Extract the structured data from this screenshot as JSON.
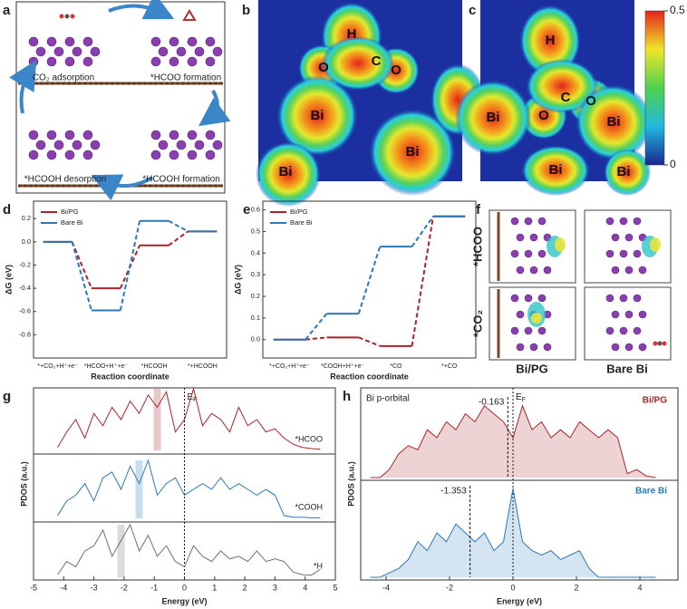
{
  "panels": {
    "a": {
      "letter": "a",
      "steps": [
        "CO₂ adsorption",
        "*HCOO formation",
        "*HCOOH desorption",
        "*HCOOH formation"
      ]
    },
    "b": {
      "letter": "b",
      "atoms": [
        "H",
        "C",
        "O",
        "O",
        "Bi",
        "Bi",
        "Bi"
      ]
    },
    "c": {
      "letter": "c",
      "atoms": [
        "H",
        "C",
        "O",
        "O",
        "Bi",
        "Bi",
        "Bi",
        "Bi"
      ],
      "colorbar": {
        "range": [
          0,
          0.5
        ],
        "ticks": [
          0,
          0.5
        ]
      }
    },
    "f": {
      "letter": "f",
      "rows": [
        "*HCOO",
        "*CO₂"
      ],
      "columns": [
        "Bi/PG",
        "Bare Bi"
      ]
    }
  },
  "chart_data": [
    {
      "panel": "d",
      "type": "step",
      "xlabel": "Reaction coordinate",
      "ylabel": "ΔG (eV)",
      "categories": [
        "*+CO₂+H⁺+e⁻",
        "*HCOO+H⁺+e⁻",
        "*HCOOH",
        "*+HCOOH"
      ],
      "series": [
        {
          "name": "Bi/PG",
          "color": "#a8232b",
          "values": [
            0,
            -0.4,
            -0.03,
            0.09
          ]
        },
        {
          "name": "Bare Bi",
          "color": "#2a78b8",
          "values": [
            0,
            -0.59,
            0.18,
            0.09
          ]
        }
      ],
      "ylim": [
        -1.0,
        0.35
      ],
      "yticks": [
        -0.8,
        -0.6,
        -0.4,
        -0.2,
        {
          "value": 0,
          "label": "0.0"
        },
        0.2
      ],
      "legend": "upper left"
    },
    {
      "panel": "e",
      "type": "step",
      "xlabel": "Reaction coordinate",
      "ylabel": "ΔG (eV)",
      "categories": [
        "*+CO₂+H⁺+e⁻",
        "*COOH+H⁺+e⁻",
        "*CO",
        "*+CO"
      ],
      "series": [
        {
          "name": "Bi/PG",
          "color": "#a8232b",
          "values": [
            0,
            0.01,
            -0.03,
            0.57
          ]
        },
        {
          "name": "Bare Bi",
          "color": "#2a78b8",
          "values": [
            0,
            0.12,
            0.43,
            0.57
          ]
        }
      ],
      "ylim": [
        -0.085,
        0.64
      ],
      "yticks": [
        {
          "value": 0,
          "label": "0.0"
        },
        0.1,
        0.2,
        0.3,
        0.4,
        0.5,
        0.6
      ],
      "legend": "upper left"
    },
    {
      "panel": "g",
      "type": "line",
      "xlabel": "Energy (eV)",
      "ylabel": "PDOS (a.u.)",
      "fermi": [
        "E",
        "F"
      ],
      "x": [
        -4.2,
        -3.9,
        -3.6,
        -3.3,
        -3.0,
        -2.7,
        -2.4,
        -2.1,
        -1.8,
        -1.5,
        -1.2,
        -0.9,
        -0.6,
        -0.3,
        0,
        0.3,
        0.6,
        0.9,
        1.2,
        1.5,
        1.8,
        2.1,
        2.4,
        2.7,
        3.0,
        3.3,
        3.6,
        3.9,
        4.2,
        4.5
      ],
      "series": [
        {
          "name": "*HCOO",
          "color": "#a8232b",
          "highlight": -0.9,
          "values": [
            0.05,
            0.3,
            0.5,
            0.2,
            0.6,
            0.4,
            0.7,
            0.5,
            0.8,
            0.6,
            0.9,
            0.7,
            0.95,
            0.3,
            0.5,
            1.0,
            0.4,
            0.6,
            0.5,
            0.3,
            0.7,
            0.4,
            0.5,
            0.3,
            0.35,
            0.2,
            0.1,
            0.05,
            0.03,
            0.02
          ]
        },
        {
          "name": "*COOH",
          "color": "#2a78b8",
          "highlight": -1.5,
          "values": [
            0.05,
            0.3,
            0.4,
            0.6,
            0.3,
            0.7,
            0.8,
            0.5,
            0.9,
            0.6,
            1.0,
            0.4,
            0.6,
            0.7,
            0.4,
            0.5,
            0.6,
            0.5,
            0.7,
            0.5,
            0.6,
            0.5,
            0.4,
            0.5,
            0.4,
            0.05,
            0.02,
            0.02,
            0.01,
            0.01
          ]
        },
        {
          "name": "*H",
          "color": "#707070",
          "highlight": -2.1,
          "values": [
            0.05,
            0.3,
            0.2,
            0.5,
            0.6,
            0.9,
            0.4,
            0.7,
            1.0,
            0.5,
            0.8,
            0.4,
            0.6,
            0.3,
            0.2,
            0.6,
            0.4,
            0.3,
            0.5,
            0.35,
            0.4,
            0.3,
            0.5,
            0.3,
            0.35,
            0.3,
            0.1,
            0.05,
            0.04,
            0.15
          ]
        }
      ],
      "xlim": [
        -5,
        5
      ],
      "xticks": [
        -5,
        -4,
        -3,
        -2,
        -1,
        0,
        1,
        2,
        3,
        4,
        5
      ]
    },
    {
      "panel": "h",
      "type": "area",
      "xlabel": "Energy (eV)",
      "ylabel": "PDOS (a.u.)",
      "fermi": [
        "E",
        "F"
      ],
      "annotation": "Bi p-orbital",
      "markers": [
        -0.163,
        -1.353
      ],
      "x": [
        -4.5,
        -4.2,
        -3.9,
        -3.6,
        -3.3,
        -3.0,
        -2.7,
        -2.4,
        -2.1,
        -1.8,
        -1.5,
        -1.2,
        -0.9,
        -0.6,
        -0.3,
        0,
        0.3,
        0.6,
        0.9,
        1.2,
        1.5,
        1.8,
        2.1,
        2.4,
        2.7,
        3.0,
        3.3,
        3.6,
        3.9,
        4.2,
        4.5
      ],
      "series": [
        {
          "name": "Bi/PG",
          "color": "#a8232b",
          "values": [
            0,
            0,
            0.1,
            0.3,
            0.4,
            0.35,
            0.6,
            0.5,
            0.7,
            0.6,
            0.8,
            0.7,
            0.9,
            0.8,
            0.7,
            0.5,
            0.9,
            0.6,
            0.7,
            0.5,
            0.6,
            0.5,
            0.7,
            0.6,
            0.5,
            0.6,
            0.5,
            0.05,
            0.1,
            0.02,
            0
          ]
        },
        {
          "name": "Bare Bi",
          "color": "#2a78b8",
          "values": [
            0,
            0,
            0.05,
            0.1,
            0.2,
            0.4,
            0.3,
            0.5,
            0.4,
            0.6,
            0.5,
            0.4,
            0.5,
            0.3,
            0.4,
            1.0,
            0.4,
            0.3,
            0.25,
            0.3,
            0.2,
            0.25,
            0.3,
            0.1,
            0,
            0,
            0,
            0,
            0,
            0,
            0
          ]
        }
      ],
      "xlim": [
        -4.8,
        5.2
      ],
      "xticks": [
        -4,
        -2,
        0,
        2,
        4
      ]
    }
  ]
}
